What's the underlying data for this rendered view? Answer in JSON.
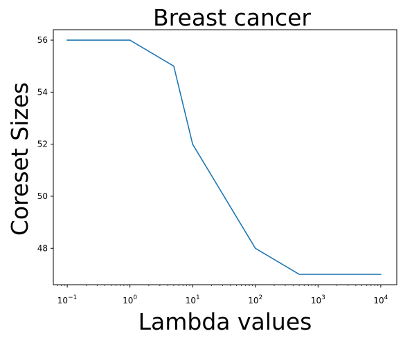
{
  "chart_data": {
    "type": "line",
    "title": "Breast cancer",
    "xlabel": "Lambda values",
    "ylabel": "Coreset Sizes",
    "xscale": "log",
    "xlim": [
      0.06,
      18000
    ],
    "ylim": [
      46.6,
      56.4
    ],
    "x_ticks": [
      {
        "base": "10",
        "exp": "−1",
        "value": 0.1
      },
      {
        "base": "10",
        "exp": "0",
        "value": 1
      },
      {
        "base": "10",
        "exp": "1",
        "value": 10
      },
      {
        "base": "10",
        "exp": "2",
        "value": 100
      },
      {
        "base": "10",
        "exp": "3",
        "value": 1000
      },
      {
        "base": "10",
        "exp": "4",
        "value": 10000
      }
    ],
    "y_ticks": [
      {
        "label": "48",
        "value": 48
      },
      {
        "label": "50",
        "value": 50
      },
      {
        "label": "52",
        "value": 52
      },
      {
        "label": "54",
        "value": 54
      },
      {
        "label": "56",
        "value": 56
      }
    ],
    "grid": false,
    "series": [
      {
        "color": "#1f77b4",
        "x": [
          0.1,
          1,
          5,
          10,
          100,
          500,
          1000,
          10000
        ],
        "y": [
          56,
          56,
          55,
          52,
          48,
          47,
          47,
          47
        ]
      }
    ]
  }
}
